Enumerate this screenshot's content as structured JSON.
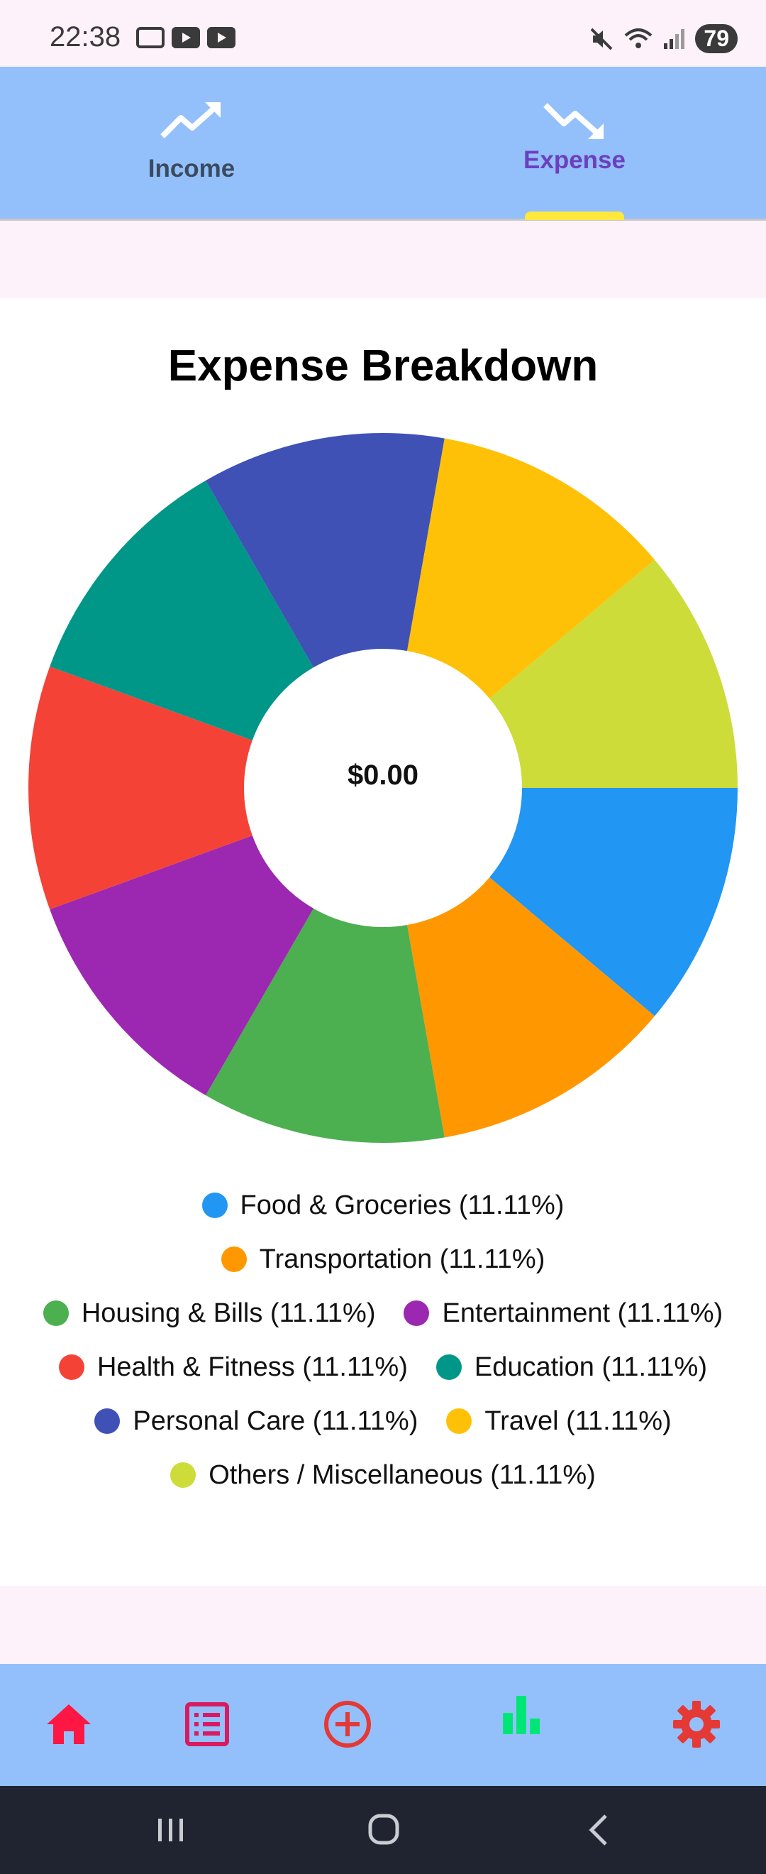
{
  "status_bar": {
    "time": "22:38",
    "battery": "79"
  },
  "tabs": [
    {
      "label": "Income",
      "icon": "trending-up-icon",
      "selected": false
    },
    {
      "label": "Expense",
      "icon": "trending-down-icon",
      "selected": true
    }
  ],
  "chart_title": "Expense Breakdown",
  "total": "$0.00",
  "chart_data": {
    "type": "pie",
    "title": "Expense Breakdown",
    "center_label": "$0.00",
    "categories": [
      "Food & Groceries",
      "Transportation",
      "Housing & Bills",
      "Entertainment",
      "Health & Fitness",
      "Education",
      "Personal Care",
      "Travel",
      "Others / Miscellaneous"
    ],
    "values": [
      11.11,
      11.11,
      11.11,
      11.11,
      11.11,
      11.11,
      11.11,
      11.11,
      11.11
    ],
    "colors": [
      "#2196f3",
      "#ff9800",
      "#4caf50",
      "#9c27b0",
      "#f44336",
      "#009688",
      "#3f51b5",
      "#ffc107",
      "#cddc39"
    ],
    "legend_labels": [
      "Food & Groceries (11.11%)",
      "Transportation (11.11%)",
      "Housing & Bills (11.11%)",
      "Entertainment (11.11%)",
      "Health & Fitness (11.11%)",
      "Education (11.11%)",
      "Personal Care (11.11%)",
      "Travel (11.11%)",
      "Others / Miscellaneous (11.11%)"
    ]
  },
  "bottom_nav": [
    {
      "name": "home",
      "icon": "home-icon",
      "color": "#ff1744"
    },
    {
      "name": "list",
      "icon": "list-icon",
      "color": "#d81b60"
    },
    {
      "name": "add",
      "icon": "add-circle-icon",
      "color": "#e53935"
    },
    {
      "name": "stats",
      "icon": "bar-chart-icon",
      "color": "#00e676"
    },
    {
      "name": "settings",
      "icon": "settings-icon",
      "color": "#e53935"
    }
  ]
}
